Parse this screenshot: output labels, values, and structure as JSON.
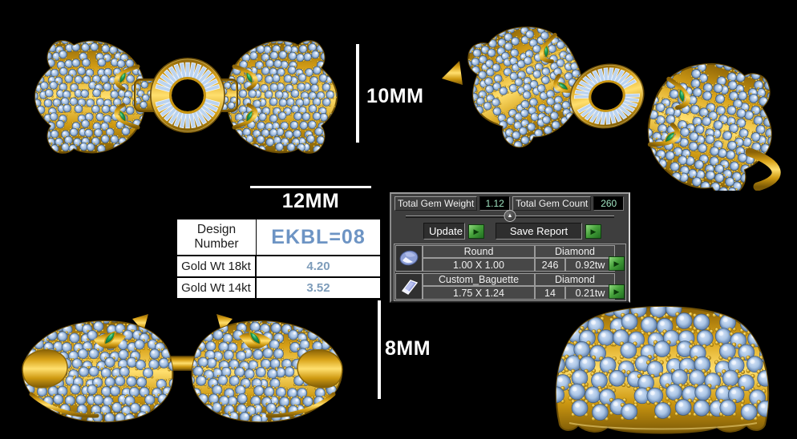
{
  "scene": {
    "background": "#000000",
    "colors": {
      "gold": "#d8a117",
      "pave_stone": "#a9c4e4",
      "emerald": "#1ea257"
    }
  },
  "dimensions": {
    "top_view": "10MM",
    "front_width": "12MM",
    "side_view": "8MM"
  },
  "spec_table": {
    "design_label": "Design Number",
    "design_value": "EKBL=08",
    "rows": [
      {
        "label": "Gold Wt 18kt",
        "value": "4.20"
      },
      {
        "label": "Gold Wt 14kt",
        "value": "3.52"
      }
    ]
  },
  "gem_panel": {
    "total_weight_label": "Total Gem Weight",
    "total_weight_value": "1.12",
    "total_count_label": "Total Gem Count",
    "total_count_value": "260",
    "update_label": "Update",
    "save_report_label": "Save Report",
    "arrow_glyph": "▶",
    "collapse_glyph": "▲",
    "colors": {
      "value_text": "#9fe3c0",
      "button_green": "#3da23d"
    },
    "gems": [
      {
        "shape": "Round",
        "type": "Diamond",
        "size": "1.00 X 1.00",
        "count": "246",
        "weight": "0.92tw"
      },
      {
        "shape": "Custom_Baguette",
        "type": "Diamond",
        "size": "1.75 X 1.24",
        "count": "14",
        "weight": "0.21tw"
      }
    ]
  }
}
